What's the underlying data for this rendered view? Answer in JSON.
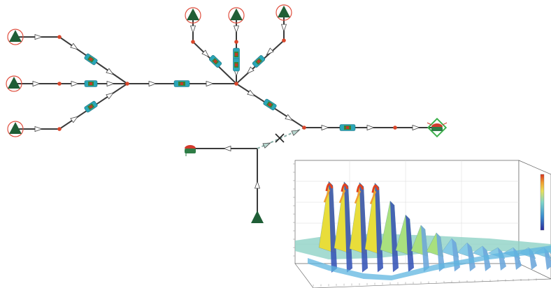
{
  "colors": {
    "line": "#3a3a3a",
    "node": "#d9462a",
    "source": "#1f5e36",
    "source_ring": "#e05040",
    "sink_body": "#2e7d46",
    "sink_cap": "#d23a2c",
    "valve_body": "#2aa6b8",
    "valve_core": "#3f7f2f",
    "arrow": "#ffffff",
    "closed_mark": "#222222",
    "demand_frame": "#3bb04a"
  },
  "icons": {
    "source": "triangle-reservoir-icon",
    "node": "junction-dot-icon",
    "valve": "pipe-valve-icon",
    "flow": "flow-arrow-icon",
    "sink": "tank-icon",
    "closed": "closed-valve-x-icon",
    "demand": "demand-node-icon"
  },
  "surface_plot": {
    "type": "surface-3d",
    "colormap": "jet",
    "peaks": 4,
    "decay": "exponential",
    "colorbar": "right"
  }
}
